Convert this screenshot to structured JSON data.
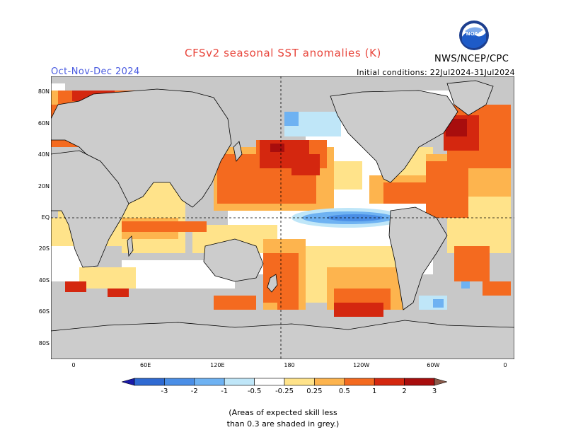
{
  "title": "CFSv2 seasonal SST anomalies (K)",
  "season": "Oct-Nov-Dec 2024",
  "initial_conditions": "Initial conditions: 22Jul2024-31Jul2024",
  "agency": "NWS/NCEP/CPC",
  "logo_text": "NOAA",
  "lat_labels": [
    "80N",
    "60N",
    "40N",
    "20N",
    "EQ",
    "20S",
    "40S",
    "60S",
    "80S"
  ],
  "lon_labels": [
    "0",
    "60E",
    "120E",
    "180",
    "120W",
    "60W",
    "0"
  ],
  "colorbar": {
    "labels": [
      "-3",
      "-2",
      "-1",
      "-0.5",
      "-0.25",
      "0.25",
      "0.5",
      "1",
      "2",
      "3"
    ],
    "colors": [
      "#1a1aa8",
      "#2f6ad2",
      "#4a8ee6",
      "#6eb2f2",
      "#bfe6f8",
      "#ffffff",
      "#ffe38a",
      "#fdb44e",
      "#f46a1f",
      "#d4270f",
      "#a80d0d",
      "#8a5a4a"
    ]
  },
  "note": [
    "(Areas of expected skill less",
    "than 0.3 are shaded in grey.)"
  ],
  "colors": {
    "land": "#cccccc",
    "grey_low_skill": "#c8c8c8",
    "ocean_neutral": "#ffffff",
    "title": "#e8463c",
    "season": "#4a5be0"
  }
}
